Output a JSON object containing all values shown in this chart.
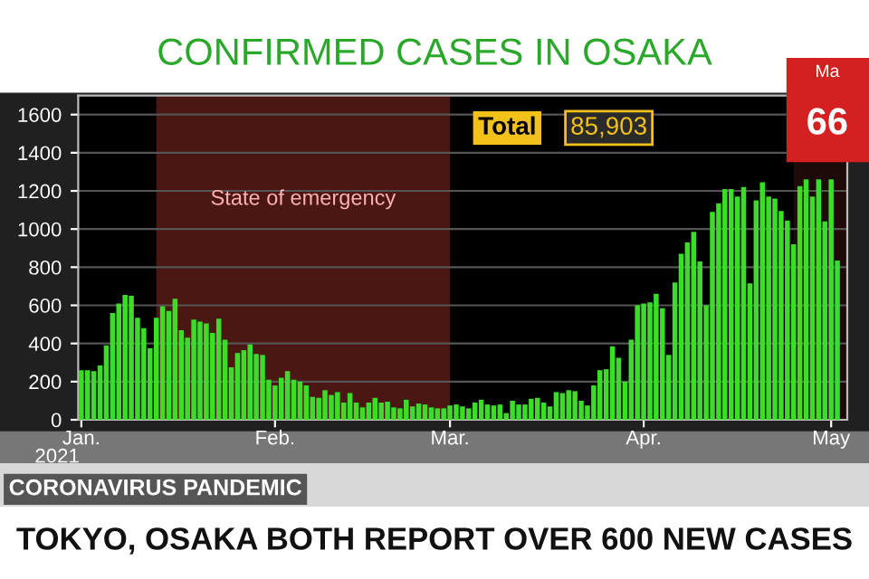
{
  "chart_data": {
    "type": "bar",
    "title": "CONFIRMED CASES IN OSAKA",
    "x": [
      "2021-01-01",
      "2021-01-02",
      "2021-01-03",
      "2021-01-04",
      "2021-01-05",
      "2021-01-06",
      "2021-01-07",
      "2021-01-08",
      "2021-01-09",
      "2021-01-10",
      "2021-01-11",
      "2021-01-12",
      "2021-01-13",
      "2021-01-14",
      "2021-01-15",
      "2021-01-16",
      "2021-01-17",
      "2021-01-18",
      "2021-01-19",
      "2021-01-20",
      "2021-01-21",
      "2021-01-22",
      "2021-01-23",
      "2021-01-24",
      "2021-01-25",
      "2021-01-26",
      "2021-01-27",
      "2021-01-28",
      "2021-01-29",
      "2021-01-30",
      "2021-01-31",
      "2021-02-01",
      "2021-02-02",
      "2021-02-03",
      "2021-02-04",
      "2021-02-05",
      "2021-02-06",
      "2021-02-07",
      "2021-02-08",
      "2021-02-09",
      "2021-02-10",
      "2021-02-11",
      "2021-02-12",
      "2021-02-13",
      "2021-02-14",
      "2021-02-15",
      "2021-02-16",
      "2021-02-17",
      "2021-02-18",
      "2021-02-19",
      "2021-02-20",
      "2021-02-21",
      "2021-02-22",
      "2021-02-23",
      "2021-02-24",
      "2021-02-25",
      "2021-02-26",
      "2021-02-27",
      "2021-02-28",
      "2021-03-01",
      "2021-03-02",
      "2021-03-03",
      "2021-03-04",
      "2021-03-05",
      "2021-03-06",
      "2021-03-07",
      "2021-03-08",
      "2021-03-09",
      "2021-03-10",
      "2021-03-11",
      "2021-03-12",
      "2021-03-13",
      "2021-03-14",
      "2021-03-15",
      "2021-03-16",
      "2021-03-17",
      "2021-03-18",
      "2021-03-19",
      "2021-03-20",
      "2021-03-21",
      "2021-03-22",
      "2021-03-23",
      "2021-03-24",
      "2021-03-25",
      "2021-03-26",
      "2021-03-27",
      "2021-03-28",
      "2021-03-29",
      "2021-03-30",
      "2021-03-31",
      "2021-04-01",
      "2021-04-02",
      "2021-04-03",
      "2021-04-04",
      "2021-04-05",
      "2021-04-06",
      "2021-04-07",
      "2021-04-08",
      "2021-04-09",
      "2021-04-10",
      "2021-04-11",
      "2021-04-12",
      "2021-04-13",
      "2021-04-14",
      "2021-04-15",
      "2021-04-16",
      "2021-04-17",
      "2021-04-18",
      "2021-04-19",
      "2021-04-20",
      "2021-04-21",
      "2021-04-22",
      "2021-04-23",
      "2021-04-24",
      "2021-04-25",
      "2021-04-26",
      "2021-04-27",
      "2021-04-28",
      "2021-04-29",
      "2021-04-30",
      "2021-05-01",
      "2021-05-02"
    ],
    "values": [
      260,
      260,
      255,
      285,
      390,
      560,
      610,
      655,
      650,
      535,
      480,
      375,
      535,
      595,
      570,
      635,
      470,
      430,
      525,
      515,
      505,
      455,
      530,
      420,
      275,
      350,
      365,
      395,
      345,
      340,
      210,
      180,
      220,
      255,
      210,
      200,
      180,
      120,
      115,
      155,
      130,
      145,
      90,
      140,
      90,
      65,
      90,
      115,
      90,
      95,
      65,
      60,
      105,
      70,
      85,
      80,
      65,
      60,
      60,
      75,
      80,
      70,
      60,
      90,
      105,
      80,
      75,
      80,
      35,
      100,
      80,
      80,
      110,
      115,
      90,
      70,
      145,
      140,
      155,
      150,
      100,
      75,
      180,
      260,
      265,
      385,
      325,
      200,
      420,
      600,
      610,
      615,
      660,
      585,
      340,
      720,
      870,
      930,
      985,
      830,
      600,
      1090,
      1135,
      1210,
      1210,
      1170,
      1220,
      715,
      1150,
      1245,
      1170,
      1160,
      1095,
      1045,
      920,
      1225,
      1260,
      1170,
      1260,
      1040,
      1260,
      835
    ],
    "color": "#3ddc2a",
    "xlim": [
      "2020-12-31T12:00",
      "2021-05-03T14:00"
    ],
    "xticks": [
      {
        "value": "2021-01-01",
        "label": "Jan."
      },
      {
        "value": "2021-02-01",
        "label": "Feb."
      },
      {
        "value": "2021-03-01",
        "label": "Mar."
      },
      {
        "value": "2021-04-01",
        "label": "Apr."
      },
      {
        "value": "2021-05-01",
        "label": "May"
      }
    ],
    "ylim": [
      0,
      1700
    ],
    "yticks": [
      0,
      200,
      400,
      600,
      800,
      1000,
      1200,
      1400,
      1600
    ],
    "grid": "y",
    "bands": [
      {
        "axis": "x",
        "from": "2021-01-13",
        "to": "2021-03-01",
        "label": "State of emergency",
        "color": "#4a1712"
      },
      {
        "axis": "x",
        "from": "2021-04-25",
        "to": "2021-05-03T14:00",
        "color": "#1e0a08"
      }
    ],
    "annotations": [
      "Total",
      "85,903",
      "2021",
      "CORONAVIRUS PANDEMIC",
      "TOKYO, OSAKA BOTH REPORT OVER 600 NEW CASES",
      "Ma",
      "66"
    ]
  }
}
